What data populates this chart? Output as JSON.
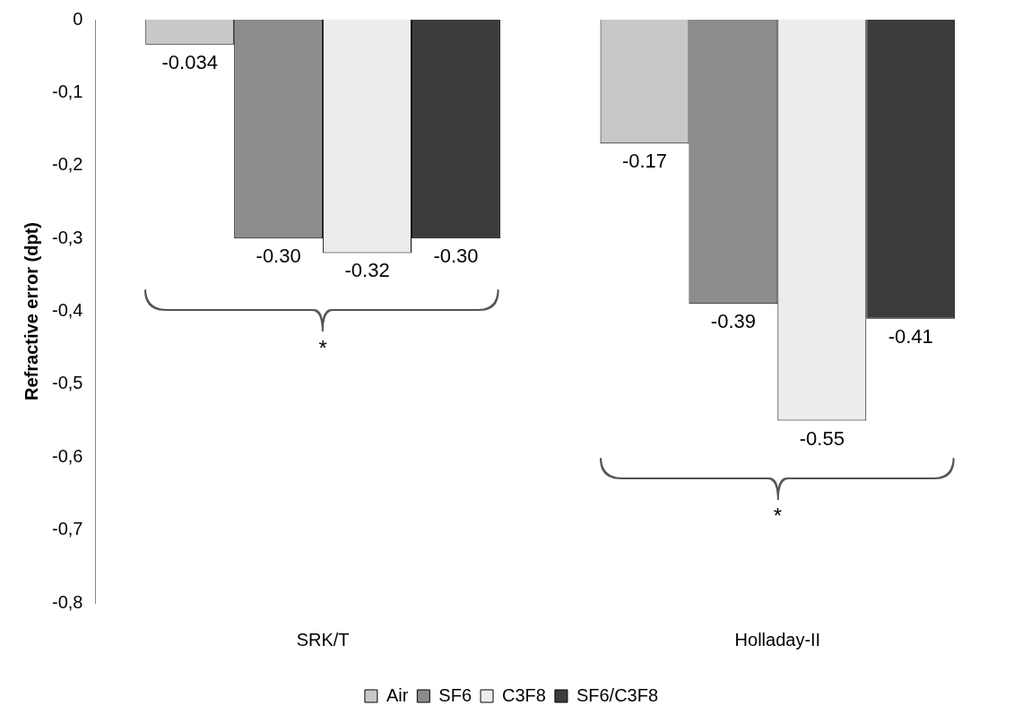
{
  "chart_data": {
    "type": "bar",
    "ylabel": "Refractive error (dpt)",
    "categories": [
      "SRK/T",
      "Holladay-II"
    ],
    "series": [
      {
        "name": "Air",
        "color": "#c8c8c8",
        "values": [
          -0.034,
          -0.17
        ],
        "value_labels": [
          "-0.034",
          "-0.17"
        ]
      },
      {
        "name": "SF6",
        "color": "#8c8c8c",
        "values": [
          -0.3,
          -0.39
        ],
        "value_labels": [
          "-0.30",
          "-0.39"
        ]
      },
      {
        "name": "C3F8",
        "color": "#ececec",
        "values": [
          -0.32,
          -0.55
        ],
        "value_labels": [
          "-0.32",
          "-0.55"
        ]
      },
      {
        "name": "SF6/C3F8",
        "color": "#3c3c3c",
        "values": [
          -0.3,
          -0.41
        ],
        "value_labels": [
          "-0.30",
          "-0.41"
        ]
      }
    ],
    "ylim": [
      -0.8,
      0
    ],
    "yticks": [
      0,
      {
        "value": -0.1,
        "label": "-0,1"
      },
      {
        "value": -0.2,
        "label": "-0,2"
      },
      {
        "value": -0.3,
        "label": "-0,3"
      },
      {
        "value": -0.4,
        "label": "-0,4"
      },
      {
        "value": -0.5,
        "label": "-0,5"
      },
      {
        "value": -0.6,
        "label": "-0,6"
      },
      {
        "value": -0.7,
        "label": "-0,7"
      },
      {
        "value": -0.8,
        "label": "-0,8"
      }
    ],
    "annotations": [
      "*",
      "*"
    ],
    "grid": false,
    "legend": "bottom"
  }
}
